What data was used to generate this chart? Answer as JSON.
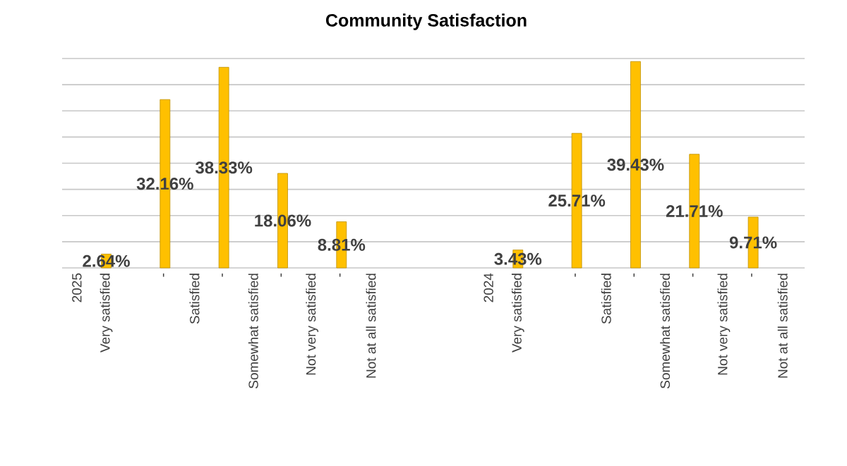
{
  "chart_data": {
    "type": "bar",
    "title": "Community Satisfaction",
    "categories": [
      "2025",
      "Very satisfied",
      null,
      "-",
      "Satisfied",
      "-",
      "Somewhat satisfied",
      "-",
      "Not very satisfied",
      "-",
      "Not at all satisfied",
      null,
      null,
      null,
      "2024",
      "Very satisfied",
      null,
      "-",
      "Satisfied",
      "-",
      "Somewhat satisfied",
      "-",
      "Not very satisfied",
      "-",
      "Not at all satisfied"
    ],
    "values": [
      null,
      2.64,
      null,
      32.16,
      null,
      38.33,
      null,
      18.06,
      null,
      8.81,
      null,
      null,
      null,
      null,
      null,
      3.43,
      null,
      25.71,
      null,
      39.43,
      null,
      21.71,
      null,
      9.71,
      null
    ],
    "value_labels": [
      null,
      "2.64%",
      null,
      "32.16%",
      null,
      "38.33%",
      null,
      "18.06%",
      null,
      "8.81%",
      null,
      null,
      null,
      null,
      null,
      "3.43%",
      null,
      "25.71%",
      null,
      "39.43%",
      null,
      "21.71%",
      null,
      "9.71%",
      null
    ],
    "color": "#ffc000",
    "ylim": [
      0,
      40
    ],
    "yticks": [
      {
        "value": 0,
        "label": null
      },
      {
        "value": 5,
        "label": null
      },
      {
        "value": 10,
        "label": null
      },
      {
        "value": 15,
        "label": null
      },
      {
        "value": 20,
        "label": null
      },
      {
        "value": 25,
        "label": null
      },
      {
        "value": 30,
        "label": null
      },
      {
        "value": 35,
        "label": null
      },
      {
        "value": 40,
        "label": null
      }
    ],
    "grid": "y",
    "tick_labels": "x"
  }
}
